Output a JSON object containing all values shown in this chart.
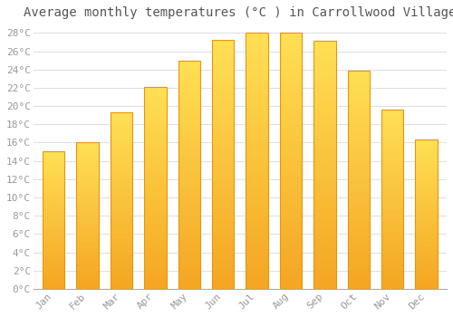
{
  "months": [
    "Jan",
    "Feb",
    "Mar",
    "Apr",
    "May",
    "Jun",
    "Jul",
    "Aug",
    "Sep",
    "Oct",
    "Nov",
    "Dec"
  ],
  "values": [
    15.1,
    16.0,
    19.3,
    22.1,
    25.0,
    27.2,
    28.0,
    28.0,
    27.1,
    23.9,
    19.6,
    16.3
  ],
  "bar_color_bottom": "#F5A623",
  "bar_color_top": "#FFD966",
  "bar_edge_color": "#E8960A",
  "title": "Average monthly temperatures (°C ) in Carrollwood Village",
  "ylim": [
    0,
    29
  ],
  "yticks": [
    0,
    2,
    4,
    6,
    8,
    10,
    12,
    14,
    16,
    18,
    20,
    22,
    24,
    26,
    28
  ],
  "background_color": "#ffffff",
  "grid_color": "#dddddd",
  "title_fontsize": 10,
  "tick_fontsize": 8,
  "bar_width": 0.65
}
